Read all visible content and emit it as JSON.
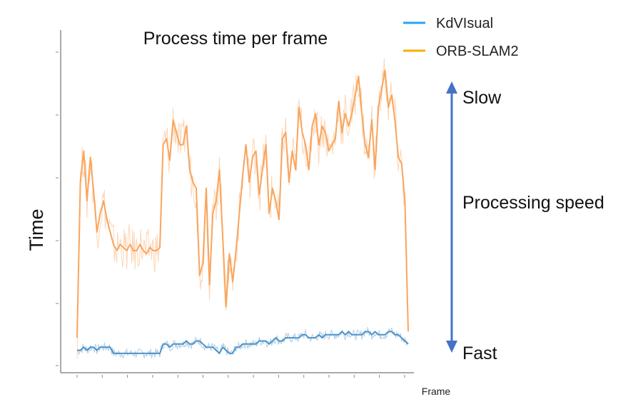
{
  "chart_data": {
    "type": "line",
    "title": "Process time per frame",
    "xlabel": "Frame",
    "ylabel": "Time",
    "xlim": [
      0,
      100
    ],
    "ylim": [
      0,
      100
    ],
    "grid": false,
    "legend_position": "top-right",
    "series": [
      {
        "name": "KdVIsual",
        "color": "#4f93c8",
        "x": [
          0,
          1,
          2,
          3,
          4,
          5,
          6,
          7,
          8,
          9,
          10,
          11,
          12,
          13,
          14,
          15,
          16,
          17,
          18,
          19,
          20,
          21,
          22,
          23,
          24,
          25,
          26,
          27,
          28,
          29,
          30,
          31,
          32,
          33,
          34,
          35,
          36,
          37,
          38,
          39,
          40,
          41,
          42,
          43,
          44,
          45,
          46,
          47,
          48,
          49,
          50,
          51,
          52,
          53,
          54,
          55,
          56,
          57,
          58,
          59,
          60,
          61,
          62,
          63,
          64,
          65,
          66,
          67,
          68,
          69,
          70,
          71,
          72,
          73,
          74,
          75,
          76,
          77,
          78,
          79,
          80,
          81,
          82,
          83,
          84,
          85,
          86,
          87,
          88,
          89,
          90,
          91,
          92,
          93,
          94,
          95,
          96,
          97,
          98,
          99,
          100
        ],
        "y": [
          4,
          4,
          5,
          4,
          5,
          5,
          4,
          5,
          5,
          5,
          5,
          3,
          3,
          3,
          3,
          3,
          3,
          3,
          3,
          3,
          3,
          3,
          3,
          3,
          3,
          3,
          6,
          6,
          5,
          6,
          6,
          6,
          6,
          7,
          6,
          6,
          7,
          7,
          6,
          5,
          5,
          5,
          4,
          3,
          5,
          4,
          3,
          3,
          5,
          5,
          6,
          6,
          6,
          6,
          6,
          7,
          7,
          7,
          6,
          7,
          8,
          7,
          7,
          8,
          8,
          8,
          8,
          8,
          9,
          9,
          8,
          8,
          8,
          9,
          8,
          9,
          9,
          9,
          9,
          9,
          10,
          9,
          10,
          9,
          9,
          9,
          9,
          10,
          10,
          9,
          10,
          9,
          9,
          9,
          10,
          10,
          9,
          9,
          8,
          7,
          6
        ]
      },
      {
        "name": "ORB-SLAM2",
        "color": "#f9a55e",
        "x": [
          0,
          1,
          2,
          3,
          4,
          5,
          6,
          7,
          8,
          9,
          10,
          11,
          12,
          13,
          14,
          15,
          16,
          17,
          18,
          19,
          20,
          21,
          22,
          23,
          24,
          25,
          26,
          27,
          28,
          29,
          30,
          31,
          32,
          33,
          34,
          35,
          36,
          37,
          38,
          39,
          40,
          41,
          42,
          43,
          44,
          45,
          46,
          47,
          48,
          49,
          50,
          51,
          52,
          53,
          54,
          55,
          56,
          57,
          58,
          59,
          60,
          61,
          62,
          63,
          64,
          65,
          66,
          67,
          68,
          69,
          70,
          71,
          72,
          73,
          74,
          75,
          76,
          77,
          78,
          79,
          80,
          81,
          82,
          83,
          84,
          85,
          86,
          87,
          88,
          89,
          90,
          91,
          92,
          93,
          94,
          95,
          96,
          97,
          98,
          99,
          100
        ],
        "y": [
          8,
          58,
          68,
          52,
          66,
          55,
          42,
          48,
          52,
          46,
          42,
          38,
          36,
          38,
          37,
          36,
          38,
          36,
          36,
          38,
          36,
          35,
          37,
          36,
          36,
          37,
          70,
          72,
          65,
          78,
          74,
          70,
          70,
          76,
          62,
          58,
          56,
          28,
          32,
          56,
          25,
          48,
          52,
          62,
          40,
          18,
          35,
          26,
          36,
          48,
          60,
          70,
          58,
          66,
          68,
          54,
          62,
          70,
          48,
          56,
          52,
          46,
          72,
          74,
          58,
          68,
          62,
          82,
          74,
          70,
          62,
          76,
          80,
          70,
          76,
          74,
          68,
          70,
          72,
          84,
          74,
          80,
          76,
          80,
          86,
          92,
          80,
          70,
          66,
          78,
          62,
          82,
          88,
          94,
          82,
          86,
          78,
          66,
          64,
          52,
          10
        ]
      }
    ],
    "annotation": {
      "top": "Slow",
      "middle": "Processing speed",
      "bottom": "Fast",
      "arrow_color": "#4472c4"
    },
    "colors": {
      "axis": "#555555",
      "text": "#111111"
    }
  }
}
